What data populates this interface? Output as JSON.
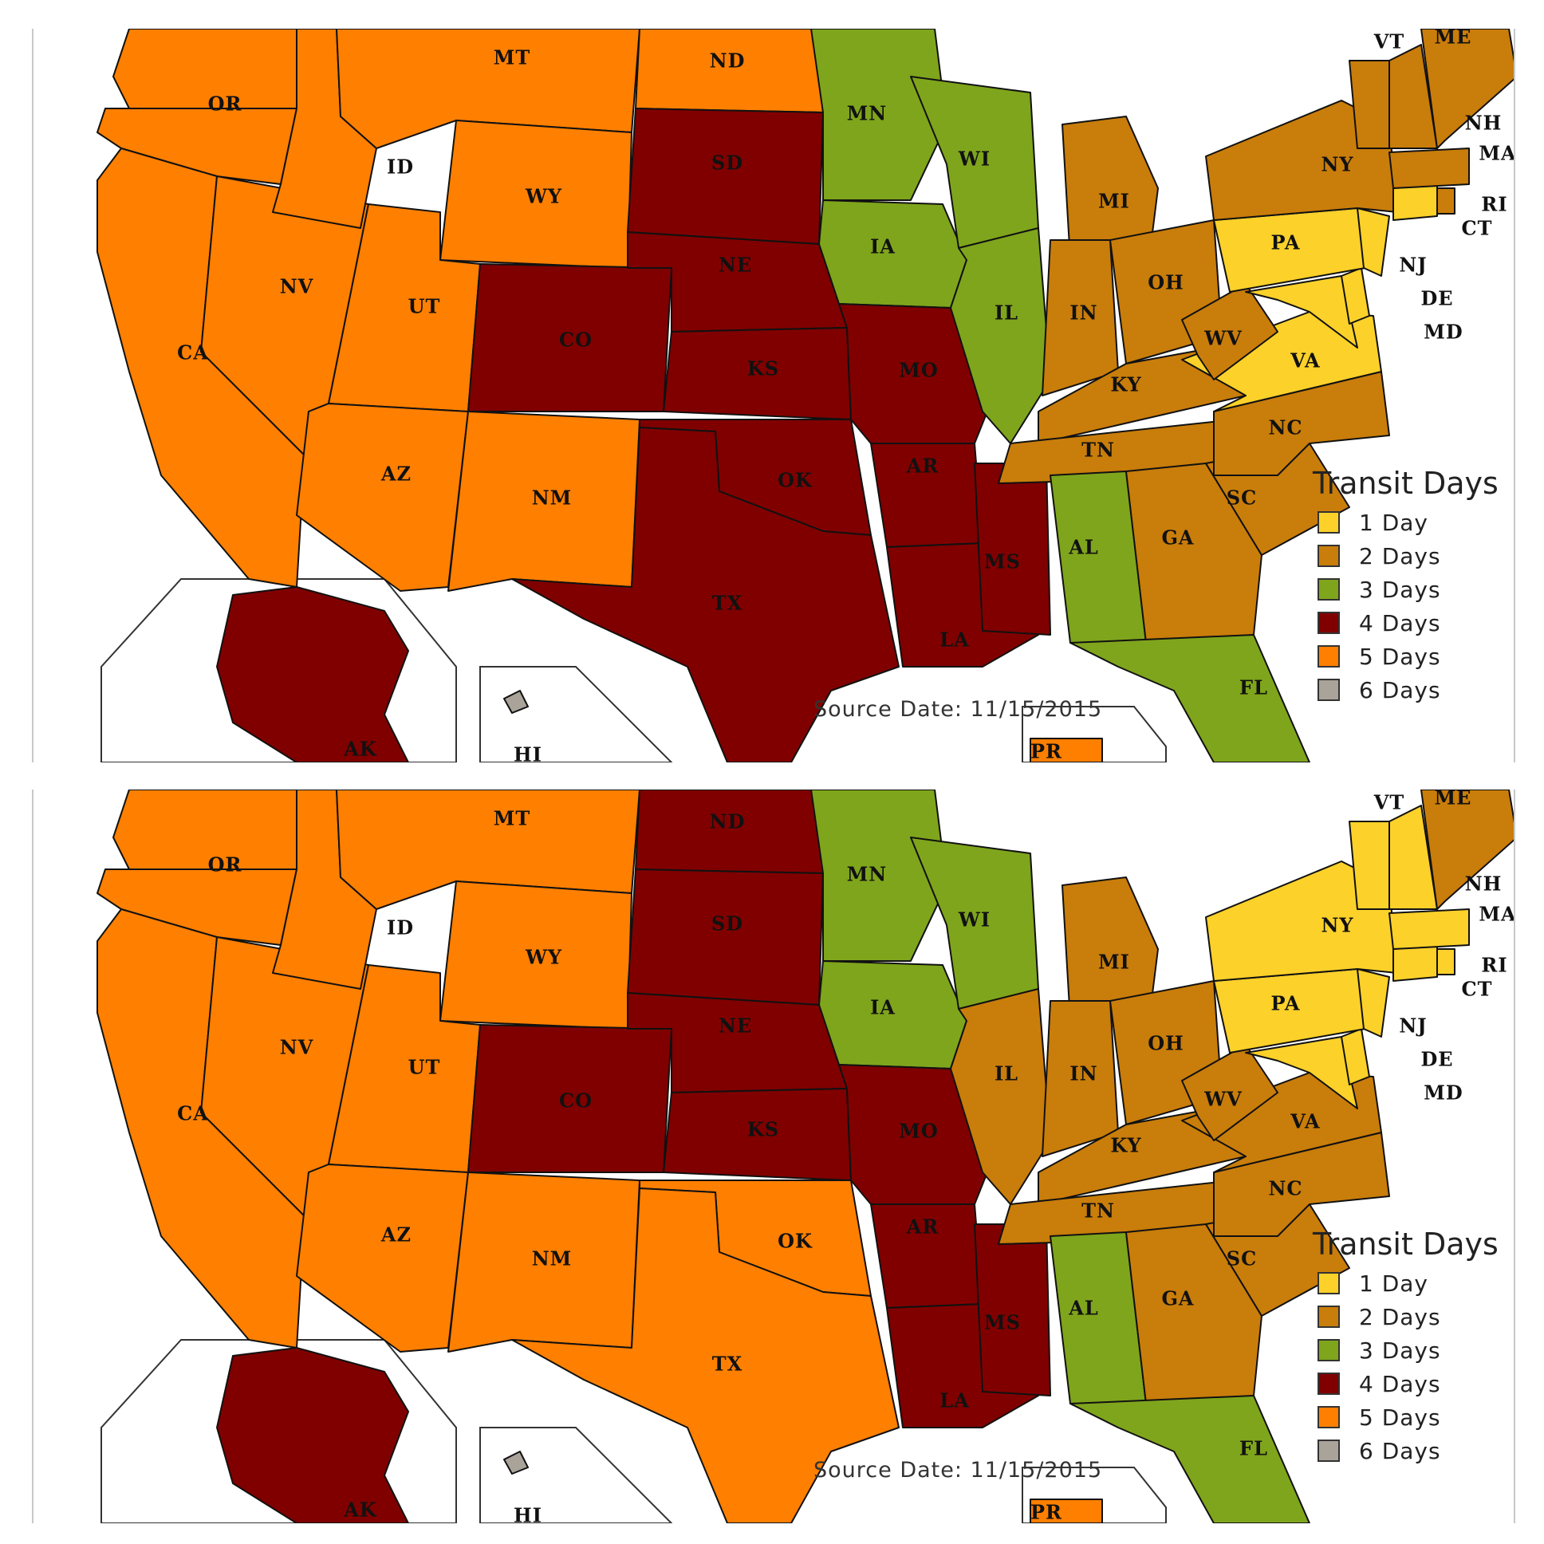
{
  "colors": {
    "one_day": "#fcd12a",
    "two_days": "#c97d0a",
    "three_days": "#7fa51c",
    "four_days": "#800000",
    "five_days": "#ff7f00",
    "six_days": "#a9a39a",
    "border": "#111111",
    "background": "#ffffff"
  },
  "legend": {
    "title": "Transit Days",
    "items": [
      {
        "label": "1 Day",
        "color": "#fcd12a"
      },
      {
        "label": "2 Days",
        "color": "#c97d0a"
      },
      {
        "label": "3 Days",
        "color": "#7fa51c"
      },
      {
        "label": "4 Days",
        "color": "#800000"
      },
      {
        "label": "5 Days",
        "color": "#ff7f00"
      },
      {
        "label": "6 Days",
        "color": "#a9a39a"
      }
    ]
  },
  "source_date": "Source Date: 11/15/2015",
  "state_labels": [
    "OR",
    "MT",
    "ND",
    "VT",
    "ME",
    "ID",
    "SD",
    "MN",
    "WI",
    "NH",
    "MA",
    "WY",
    "NY",
    "MI",
    "RI",
    "CA",
    "NV",
    "UT",
    "CO",
    "NE",
    "IA",
    "IL",
    "IN",
    "OH",
    "PA",
    "CT",
    "NJ",
    "DE",
    "MD",
    "WV",
    "VA",
    "KS",
    "MO",
    "KY",
    "AZ",
    "NM",
    "OK",
    "AR",
    "TN",
    "NC",
    "SC",
    "TX",
    "MS",
    "AL",
    "GA",
    "LA",
    "FL",
    "AK",
    "HI",
    "PR"
  ],
  "maps": [
    {
      "name": "top",
      "state_colors": {
        "OR": "five_days",
        "MT": "five_days",
        "ND": "five_days",
        "VT": "two_days",
        "ME": "two_days",
        "ID": "five_days",
        "SD": "four_days",
        "MN": "three_days",
        "WI": "three_days",
        "NH": "two_days",
        "MA": "two_days",
        "WY": "five_days",
        "NY": "two_days",
        "MI": "two_days",
        "RI": "two_days",
        "CA": "five_days",
        "NV": "five_days",
        "UT": "five_days",
        "CO": "four_days",
        "NE": "four_days",
        "IA": "three_days",
        "IL": "three_days",
        "IN": "two_days",
        "OH": "two_days",
        "PA": "one_day",
        "CT": "one_day",
        "NJ": "one_day",
        "DE": "one_day",
        "MD": "one_day",
        "WV": "two_days",
        "VA": "one_day",
        "KS": "four_days",
        "MO": "four_days",
        "KY": "two_days",
        "AZ": "five_days",
        "NM": "five_days",
        "OK": "four_days",
        "AR": "four_days",
        "TN": "two_days",
        "NC": "two_days",
        "SC": "two_days",
        "TX": "four_days",
        "MS": "four_days",
        "AL": "three_days",
        "GA": "two_days",
        "LA": "four_days",
        "FL": "three_days",
        "AK": "four_days",
        "HI": "six_days",
        "PR": "five_days"
      }
    },
    {
      "name": "bottom",
      "state_colors": {
        "OR": "five_days",
        "MT": "five_days",
        "ND": "four_days",
        "VT": "one_day",
        "ME": "two_days",
        "ID": "five_days",
        "SD": "four_days",
        "MN": "three_days",
        "WI": "three_days",
        "NH": "one_day",
        "MA": "one_day",
        "WY": "five_days",
        "NY": "one_day",
        "MI": "two_days",
        "RI": "one_day",
        "CA": "five_days",
        "NV": "five_days",
        "UT": "five_days",
        "CO": "four_days",
        "NE": "four_days",
        "IA": "three_days",
        "IL": "two_days",
        "IN": "two_days",
        "OH": "two_days",
        "PA": "one_day",
        "CT": "one_day",
        "NJ": "one_day",
        "DE": "one_day",
        "MD": "one_day",
        "WV": "two_days",
        "VA": "two_days",
        "KS": "four_days",
        "MO": "four_days",
        "KY": "two_days",
        "AZ": "five_days",
        "NM": "five_days",
        "OK": "five_days",
        "AR": "four_days",
        "TN": "two_days",
        "NC": "two_days",
        "SC": "two_days",
        "TX": "five_days",
        "MS": "four_days",
        "AL": "three_days",
        "GA": "two_days",
        "LA": "four_days",
        "FL": "three_days",
        "AK": "four_days",
        "HI": "six_days",
        "PR": "five_days"
      }
    }
  ]
}
